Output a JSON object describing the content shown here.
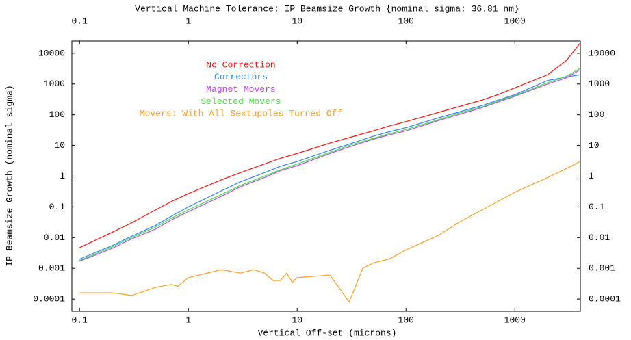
{
  "chart_data": {
    "type": "line",
    "title": "Vertical Machine Tolerance: IP Beamsize Growth {nominal sigma: 36.81 nm}",
    "xlabel": "Vertical Off-set (microns)",
    "ylabel": "IP Beamsize Growth (nominal sigma)",
    "xscale": "log",
    "yscale": "log",
    "xlim": [
      0.085,
      4000
    ],
    "ylim": [
      4e-05,
      25000
    ],
    "xticks": [
      0.1,
      1,
      10,
      100,
      1000
    ],
    "yticks": [
      0.0001,
      0.001,
      0.01,
      0.1,
      1,
      10,
      100,
      1000,
      10000
    ],
    "grid": false,
    "x": [
      0.1,
      0.2,
      0.3,
      0.5,
      0.7,
      1,
      2,
      3,
      5,
      7,
      10,
      20,
      30,
      50,
      70,
      100,
      200,
      300,
      500,
      700,
      1000,
      2000,
      3000,
      4000
    ],
    "series": [
      {
        "name": "No Correction",
        "color": "#ff1010",
        "values": [
          0.0047,
          0.015,
          0.03,
          0.08,
          0.15,
          0.27,
          0.75,
          1.3,
          2.5,
          3.8,
          5.5,
          12,
          18,
          30,
          43,
          60,
          120,
          180,
          300,
          450,
          750,
          2000,
          6000,
          22000
        ]
      },
      {
        "name": "Correctors",
        "color": "#3080ff",
        "values": [
          0.002,
          0.0055,
          0.011,
          0.025,
          0.05,
          0.1,
          0.33,
          0.65,
          1.3,
          2.1,
          3,
          7,
          11,
          20,
          28,
          38,
          80,
          120,
          200,
          300,
          450,
          1300,
          1700,
          2000
        ]
      },
      {
        "name": "Magnet Movers",
        "color": "#c040ff",
        "values": [
          0.0017,
          0.0045,
          0.009,
          0.019,
          0.038,
          0.07,
          0.22,
          0.45,
          0.9,
          1.5,
          2.2,
          5.5,
          9,
          16,
          22,
          30,
          65,
          100,
          170,
          260,
          400,
          1000,
          1600,
          3000
        ]
      },
      {
        "name": "Selected Movers",
        "color": "#40e040",
        "values": [
          0.0018,
          0.005,
          0.01,
          0.022,
          0.043,
          0.08,
          0.25,
          0.5,
          1,
          1.6,
          2.5,
          6,
          10,
          17,
          24,
          33,
          70,
          110,
          180,
          280,
          420,
          1100,
          1800,
          3300
        ]
      },
      {
        "name": "Movers: With All Sextupoles Turned Off",
        "color": "#ffa020",
        "x": [
          0.1,
          0.2,
          0.3,
          0.5,
          0.7,
          0.8,
          1,
          2,
          3,
          4,
          5,
          6,
          7,
          8,
          9,
          10,
          20,
          30,
          40,
          50,
          70,
          100,
          200,
          300,
          500,
          700,
          1000,
          2000,
          3000,
          4000
        ],
        "values": [
          0.00016,
          0.00016,
          0.00013,
          0.00024,
          0.0003,
          0.00026,
          0.0005,
          0.0009,
          0.0007,
          0.0009,
          0.0007,
          0.0004,
          0.0004,
          0.0007,
          0.00035,
          0.0005,
          0.0006,
          8e-05,
          0.001,
          0.0015,
          0.002,
          0.004,
          0.012,
          0.03,
          0.08,
          0.15,
          0.3,
          0.9,
          1.8,
          3
        ]
      }
    ]
  }
}
